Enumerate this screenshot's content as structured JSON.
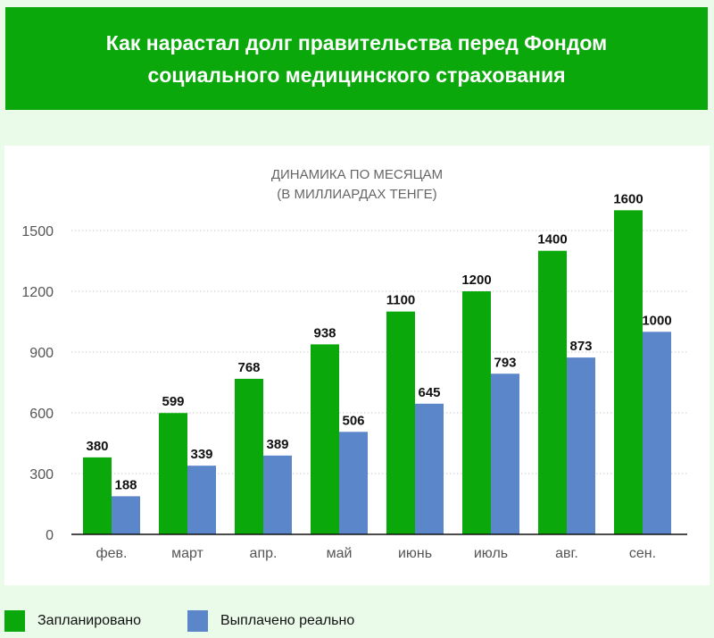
{
  "title": "Как нарастал долг правительства перед Фондом социального медицинского страхования",
  "chart_data": {
    "type": "bar",
    "title": "ДИНАМИКА ПО МЕСЯЦАМ",
    "subtitle": "(В МИЛЛИАРДАХ ТЕНГЕ)",
    "categories": [
      "фев.",
      "март",
      "апр.",
      "май",
      "июнь",
      "июль",
      "авг.",
      "сен."
    ],
    "series": [
      {
        "name": "Запланировано",
        "color": "#0aa80a",
        "values": [
          380,
          599,
          768,
          938,
          1100,
          1200,
          1400,
          1600
        ]
      },
      {
        "name": "Выплачено реально",
        "color": "#5b86c9",
        "values": [
          188,
          339,
          389,
          506,
          645,
          793,
          873,
          1000
        ]
      }
    ],
    "yticks": [
      0,
      300,
      600,
      900,
      1200,
      1500
    ],
    "ylim": [
      0,
      1650
    ],
    "grid": true,
    "legend": "bottom-left"
  }
}
